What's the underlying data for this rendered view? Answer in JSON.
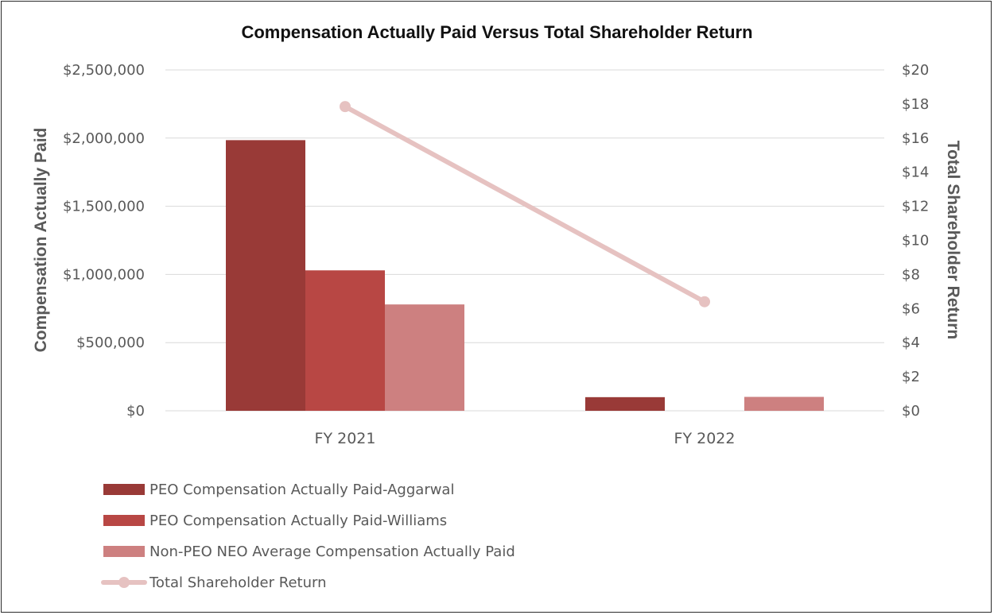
{
  "chart_data": {
    "type": "bar",
    "title": "Compensation Actually Paid Versus Total Shareholder Return",
    "categories": [
      "FY 2021",
      "FY 2022"
    ],
    "ylabel": "Compensation Actually Paid",
    "y2label": "Total Shareholder Return",
    "ylim": [
      0,
      2500000
    ],
    "y2lim": [
      0,
      20
    ],
    "yticks": [
      "$0",
      "$500,000",
      "$1,000,000",
      "$1,500,000",
      "$2,000,000",
      "$2,500,000"
    ],
    "y2ticks": [
      "$0",
      "$2",
      "$4",
      "$6",
      "$8",
      "$10",
      "$12",
      "$14",
      "$16",
      "$18",
      "$20"
    ],
    "grid": true,
    "legend_position": "bottom-left",
    "series": [
      {
        "name": "PEO Compensation Actually Paid-Aggarwal",
        "kind": "bar",
        "axis": "left",
        "color": "#993a37",
        "values": [
          1985000,
          100000
        ]
      },
      {
        "name": "PEO Compensation Actually Paid-Williams",
        "kind": "bar",
        "axis": "left",
        "color": "#b84744",
        "values": [
          1030000,
          0
        ]
      },
      {
        "name": "Non-PEO NEO Average Compensation Actually Paid",
        "kind": "bar",
        "axis": "left",
        "color": "#cd8080",
        "values": [
          780000,
          102000
        ]
      },
      {
        "name": "Total Shareholder Return",
        "kind": "line",
        "axis": "right",
        "color": "#e6c2c1",
        "values": [
          17.85,
          6.4
        ]
      }
    ]
  }
}
